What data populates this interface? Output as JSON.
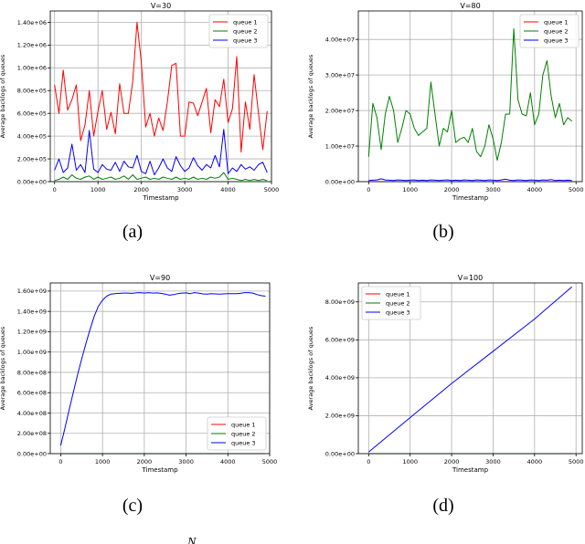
{
  "chart_data": [
    {
      "type": "line",
      "title": "V=30",
      "xlabel": "Timestamp",
      "ylabel": "Average backlogs of queues",
      "caption": "(a)",
      "xlim": [
        -100,
        5000
      ],
      "ylim": [
        0,
        1500000
      ],
      "xticks": [
        0,
        1000,
        2000,
        3000,
        4000,
        5000
      ],
      "yticks": [
        0,
        200000,
        400000,
        600000,
        800000,
        1000000,
        1200000,
        1400000
      ],
      "yticklabels": [
        "0.00e+00",
        "2.00e+05",
        "4.00e+05",
        "6.00e+05",
        "8.00e+05",
        "1.00e+06",
        "1.20e+06",
        "1.40e+06"
      ],
      "legend": "top-right",
      "grid": true,
      "series": [
        {
          "name": "queue 1",
          "color": "#ff0000",
          "x": [
            0,
            100,
            200,
            300,
            400,
            500,
            600,
            700,
            800,
            900,
            1000,
            1100,
            1200,
            1300,
            1400,
            1500,
            1600,
            1700,
            1800,
            1900,
            2000,
            2100,
            2200,
            2300,
            2400,
            2500,
            2600,
            2700,
            2800,
            2900,
            3000,
            3100,
            3200,
            3300,
            3400,
            3500,
            3600,
            3700,
            3800,
            3900,
            4000,
            4100,
            4200,
            4300,
            4400,
            4500,
            4600,
            4700,
            4800,
            4900
          ],
          "y": [
            850000,
            600000,
            980000,
            630000,
            720000,
            850000,
            360000,
            500000,
            800000,
            400000,
            620000,
            800000,
            460000,
            610000,
            420000,
            860000,
            600000,
            600000,
            880000,
            1400000,
            1050000,
            480000,
            600000,
            400000,
            560000,
            450000,
            700000,
            1020000,
            1040000,
            400000,
            400000,
            700000,
            690000,
            580000,
            700000,
            820000,
            430000,
            720000,
            660000,
            900000,
            520000,
            640000,
            1100000,
            260000,
            700000,
            460000,
            940000,
            600000,
            280000,
            620000
          ]
        },
        {
          "name": "queue 2",
          "color": "#008000",
          "x": [
            0,
            100,
            200,
            300,
            400,
            500,
            600,
            700,
            800,
            900,
            1000,
            1100,
            1200,
            1300,
            1400,
            1500,
            1600,
            1700,
            1800,
            1900,
            2000,
            2100,
            2200,
            2300,
            2400,
            2500,
            2600,
            2700,
            2800,
            2900,
            3000,
            3100,
            3200,
            3300,
            3400,
            3500,
            3600,
            3700,
            3800,
            3900,
            4000,
            4100,
            4200,
            4300,
            4400,
            4500,
            4600,
            4700,
            4800,
            4900
          ],
          "y": [
            10000,
            20000,
            40000,
            20000,
            60000,
            30000,
            20000,
            40000,
            50000,
            20000,
            40000,
            20000,
            30000,
            40000,
            20000,
            30000,
            50000,
            20000,
            60000,
            20000,
            30000,
            40000,
            20000,
            30000,
            20000,
            40000,
            30000,
            20000,
            40000,
            20000,
            30000,
            20000,
            40000,
            20000,
            30000,
            20000,
            40000,
            30000,
            40000,
            80000,
            20000,
            30000,
            20000,
            10000,
            20000,
            10000,
            20000,
            10000,
            20000,
            10000
          ]
        },
        {
          "name": "queue 3",
          "color": "#0000ff",
          "x": [
            0,
            100,
            200,
            300,
            400,
            500,
            600,
            700,
            800,
            900,
            1000,
            1100,
            1200,
            1300,
            1400,
            1500,
            1600,
            1700,
            1800,
            1900,
            2000,
            2100,
            2200,
            2300,
            2400,
            2500,
            2600,
            2700,
            2800,
            2900,
            3000,
            3100,
            3200,
            3300,
            3400,
            3500,
            3600,
            3700,
            3800,
            3900,
            4000,
            4100,
            4200,
            4300,
            4400,
            4500,
            4600,
            4700,
            4800,
            4900
          ],
          "y": [
            100000,
            200000,
            80000,
            120000,
            330000,
            100000,
            150000,
            80000,
            450000,
            110000,
            80000,
            150000,
            110000,
            100000,
            170000,
            90000,
            180000,
            130000,
            120000,
            230000,
            90000,
            70000,
            180000,
            60000,
            120000,
            200000,
            120000,
            90000,
            220000,
            140000,
            90000,
            120000,
            210000,
            140000,
            100000,
            150000,
            120000,
            230000,
            130000,
            460000,
            70000,
            120000,
            90000,
            150000,
            110000,
            130000,
            100000,
            150000,
            170000,
            80000
          ]
        }
      ]
    },
    {
      "type": "line",
      "title": "V=80",
      "xlabel": "Timestamp",
      "ylabel": "Average backlogs of queues",
      "caption": "(b)",
      "xlim": [
        -250,
        5150
      ],
      "ylim": [
        0,
        48000000
      ],
      "xticks": [
        0,
        1000,
        2000,
        3000,
        4000,
        5000
      ],
      "yticks": [
        0,
        10000000,
        20000000,
        30000000,
        40000000
      ],
      "yticklabels": [
        "0.00e+00",
        "1.00e+07",
        "2.00e+07",
        "3.00e+07",
        "4.00e+07"
      ],
      "legend": "top-right",
      "grid": true,
      "series": [
        {
          "name": "queue 1",
          "color": "#ff0000",
          "x": [
            0,
            1000,
            2000,
            3000,
            4000,
            4900
          ],
          "y": [
            0,
            0,
            0,
            0,
            0,
            0
          ]
        },
        {
          "name": "queue 2",
          "color": "#008000",
          "x": [
            0,
            100,
            200,
            300,
            400,
            500,
            600,
            700,
            800,
            900,
            1000,
            1100,
            1200,
            1300,
            1400,
            1500,
            1600,
            1700,
            1800,
            1900,
            2000,
            2100,
            2200,
            2300,
            2400,
            2500,
            2600,
            2700,
            2800,
            2900,
            3000,
            3100,
            3200,
            3300,
            3400,
            3500,
            3600,
            3700,
            3800,
            3900,
            4000,
            4100,
            4200,
            4300,
            4400,
            4500,
            4600,
            4700,
            4800,
            4900
          ],
          "y": [
            7000000,
            22000000,
            18000000,
            9000000,
            19000000,
            24000000,
            20000000,
            11000000,
            15000000,
            20000000,
            19000000,
            15000000,
            13000000,
            14000000,
            15000000,
            28000000,
            19000000,
            10000000,
            15000000,
            14000000,
            20000000,
            11000000,
            12000000,
            12500000,
            11000000,
            15000000,
            8500000,
            7000000,
            10000000,
            16000000,
            12000000,
            6000000,
            11000000,
            19000000,
            19000000,
            43000000,
            23000000,
            19000000,
            18500000,
            25000000,
            16000000,
            19000000,
            30000000,
            34000000,
            24000000,
            18000000,
            22000000,
            16000000,
            18000000,
            17000000
          ]
        },
        {
          "name": "queue 3",
          "color": "#0000ff",
          "x": [
            0,
            100,
            200,
            300,
            400,
            500,
            600,
            700,
            800,
            900,
            1000,
            1100,
            1200,
            1300,
            1400,
            1500,
            1600,
            1700,
            1800,
            1900,
            2000,
            2100,
            2200,
            2300,
            2400,
            2500,
            2600,
            2700,
            2800,
            2900,
            3000,
            3100,
            3200,
            3300,
            3400,
            3500,
            3600,
            3700,
            3800,
            3900,
            4000,
            4100,
            4200,
            4300,
            4400,
            4500,
            4600,
            4700,
            4800,
            4900
          ],
          "y": [
            300000,
            400000,
            500000,
            800000,
            500000,
            400000,
            300000,
            500000,
            400000,
            300000,
            400000,
            500000,
            300000,
            400000,
            300000,
            500000,
            400000,
            300000,
            400000,
            500000,
            300000,
            400000,
            300000,
            500000,
            400000,
            300000,
            500000,
            400000,
            300000,
            500000,
            400000,
            300000,
            500000,
            700000,
            400000,
            300000,
            500000,
            400000,
            300000,
            500000,
            400000,
            300000,
            500000,
            400000,
            600000,
            300000,
            400000,
            300000,
            400000,
            300000
          ]
        }
      ]
    },
    {
      "type": "line",
      "title": "V=90",
      "xlabel": "Timestamp",
      "ylabel": "Average backlogs of queues",
      "caption": "(c)",
      "xlim": [
        -250,
        5000
      ],
      "ylim": [
        0,
        1680000000
      ],
      "xticks": [
        0,
        1000,
        2000,
        3000,
        4000,
        5000
      ],
      "yticks": [
        0,
        200000000,
        400000000,
        600000000,
        800000000,
        1000000000,
        1200000000,
        1400000000,
        1600000000
      ],
      "yticklabels": [
        "0.00e+00",
        "2.00e+08",
        "4.00e+08",
        "6.00e+08",
        "8.00e+08",
        "1.00e+09",
        "1.20e+09",
        "1.40e+09",
        "1.60e+09"
      ],
      "legend": "lower-right",
      "grid": true,
      "series": [
        {
          "name": "queue 1",
          "color": "#ff0000",
          "x": [
            0,
            1000,
            2000,
            3000,
            4000,
            4900
          ],
          "y": [
            0,
            0,
            0,
            0,
            0,
            0
          ]
        },
        {
          "name": "queue 2",
          "color": "#008000",
          "x": [
            0,
            1000,
            2000,
            3000,
            4000,
            4900
          ],
          "y": [
            0,
            0,
            0,
            0,
            0,
            0
          ]
        },
        {
          "name": "queue 3",
          "color": "#0000ff",
          "x": [
            0,
            100,
            200,
            300,
            400,
            500,
            600,
            700,
            800,
            900,
            1000,
            1100,
            1200,
            1300,
            1400,
            1500,
            1600,
            1700,
            1800,
            1900,
            2000,
            2100,
            2200,
            2300,
            2400,
            2500,
            2600,
            2700,
            2800,
            2900,
            3000,
            3100,
            3200,
            3300,
            3400,
            3500,
            3600,
            3700,
            3800,
            3900,
            4000,
            4100,
            4200,
            4300,
            4400,
            4500,
            4600,
            4700,
            4800,
            4900
          ],
          "y": [
            80000000,
            250000000,
            430000000,
            600000000,
            770000000,
            930000000,
            1080000000,
            1220000000,
            1350000000,
            1450000000,
            1510000000,
            1550000000,
            1570000000,
            1575000000,
            1578000000,
            1580000000,
            1580000000,
            1578000000,
            1582000000,
            1585000000,
            1580000000,
            1585000000,
            1580000000,
            1582000000,
            1578000000,
            1570000000,
            1560000000,
            1565000000,
            1575000000,
            1580000000,
            1582000000,
            1575000000,
            1585000000,
            1580000000,
            1572000000,
            1570000000,
            1575000000,
            1572000000,
            1570000000,
            1572000000,
            1575000000,
            1575000000,
            1575000000,
            1578000000,
            1585000000,
            1585000000,
            1580000000,
            1565000000,
            1555000000,
            1550000000
          ]
        }
      ]
    },
    {
      "type": "line",
      "title": "V=100",
      "xlabel": "Timestamp",
      "ylabel": "Average backlogs of queues",
      "caption": "(d)",
      "xlim": [
        -250,
        5150
      ],
      "ylim": [
        0,
        9000000000
      ],
      "xticks": [
        0,
        1000,
        2000,
        3000,
        4000,
        5000
      ],
      "yticks": [
        0,
        2000000000,
        4000000000,
        6000000000,
        8000000000
      ],
      "yticklabels": [
        "0.00e+00",
        "2.00e+09",
        "4.00e+09",
        "6.00e+09",
        "8.00e+09"
      ],
      "legend": "top-left",
      "grid": true,
      "series": [
        {
          "name": "queue 1",
          "color": "#ff0000",
          "x": [
            0,
            1000,
            2000,
            3000,
            4000,
            4900
          ],
          "y": [
            0,
            0,
            0,
            0,
            0,
            0
          ]
        },
        {
          "name": "queue 2",
          "color": "#008000",
          "x": [
            0,
            1000,
            2000,
            3000,
            4000,
            4900
          ],
          "y": [
            0,
            0,
            0,
            0,
            0,
            0
          ]
        },
        {
          "name": "queue 3",
          "color": "#0000ff",
          "x": [
            0,
            1000,
            2000,
            3000,
            4000,
            4900
          ],
          "y": [
            80000000,
            1900000000,
            3700000000,
            5400000000,
            7100000000,
            8800000000
          ]
        }
      ]
    }
  ],
  "footer_fragment": "N"
}
